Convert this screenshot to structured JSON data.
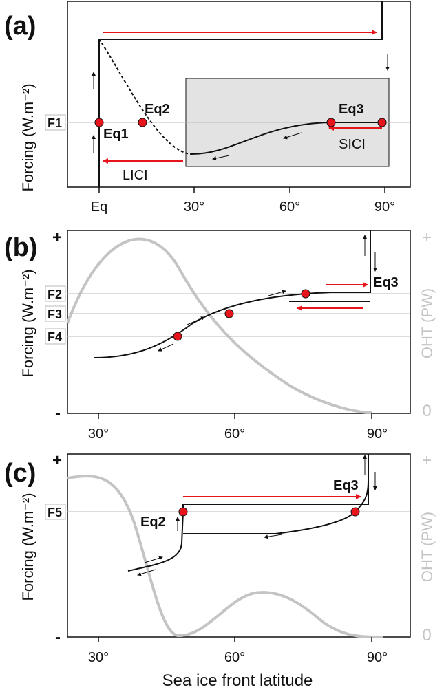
{
  "figure": {
    "xlabel": "Sea ice front latitude",
    "colors": {
      "red": "#e8141b",
      "gray_curve": "#c4c4c4",
      "box_fill": "#e3e3e3",
      "hline": "#b8b8b8"
    }
  },
  "chart_data": [
    {
      "type": "line",
      "panel": "(a)",
      "ylabel": "Forcing (W.m⁻²)",
      "x_ticks": [
        "Eq",
        "30°",
        "60°",
        "90°"
      ],
      "x_tick_values": [
        0,
        30,
        60,
        90
      ],
      "xlim": [
        -4,
        98
      ],
      "ylim": [
        0,
        1
      ],
      "forcing_levels": [
        {
          "label": "F1",
          "y": 0.54
        }
      ],
      "equilibria": [
        {
          "label": "Eq1",
          "x": 0,
          "y": 0.54
        },
        {
          "label": "Eq2",
          "x": 9,
          "y": 0.54
        },
        {
          "label": "",
          "x": 73,
          "y": 0.54
        },
        {
          "label": "Eq3",
          "x": 89,
          "y": 0.54
        }
      ],
      "shaded_region_label": "",
      "transitions": [
        {
          "label": "LICI",
          "direction": "left"
        },
        {
          "label": "SICI",
          "direction": "left"
        }
      ]
    },
    {
      "type": "line",
      "panel": "(b)",
      "ylabel": "Forcing (W.m⁻²)",
      "y2label": "OHT (PW)",
      "y_ends": [
        "+",
        "-"
      ],
      "y2_ends": [
        "+",
        "0"
      ],
      "x_ticks": [
        "30°",
        "60°",
        "90°"
      ],
      "x_tick_values": [
        30,
        60,
        90
      ],
      "xlim": [
        25,
        97
      ],
      "ylim": [
        0,
        1
      ],
      "forcing_levels": [
        {
          "label": "F2",
          "y": 0.65
        },
        {
          "label": "F3",
          "y": 0.54
        },
        {
          "label": "F4",
          "y": 0.41
        }
      ],
      "equilibria": [
        {
          "label": "",
          "x": 47,
          "y": 0.41
        },
        {
          "label": "",
          "x": 59,
          "y": 0.54
        },
        {
          "label": "",
          "x": 75,
          "y": 0.65
        },
        {
          "label": "Eq3",
          "x": 89,
          "y": 0.65
        }
      ]
    },
    {
      "type": "line",
      "panel": "(c)",
      "ylabel": "Forcing (W.m⁻²)",
      "y2label": "OHT (PW)",
      "y_ends": [
        "+",
        "-"
      ],
      "y2_ends": [
        "+",
        "0"
      ],
      "x_ticks": [
        "30°",
        "60°",
        "90°"
      ],
      "x_tick_values": [
        30,
        60,
        90
      ],
      "xlim": [
        25,
        97
      ],
      "ylim": [
        0,
        1
      ],
      "forcing_levels": [
        {
          "label": "F5",
          "y": 0.72
        }
      ],
      "equilibria": [
        {
          "label": "Eq2",
          "x": 49,
          "y": 0.72
        },
        {
          "label": "Eq3",
          "x": 86,
          "y": 0.72
        }
      ]
    }
  ]
}
